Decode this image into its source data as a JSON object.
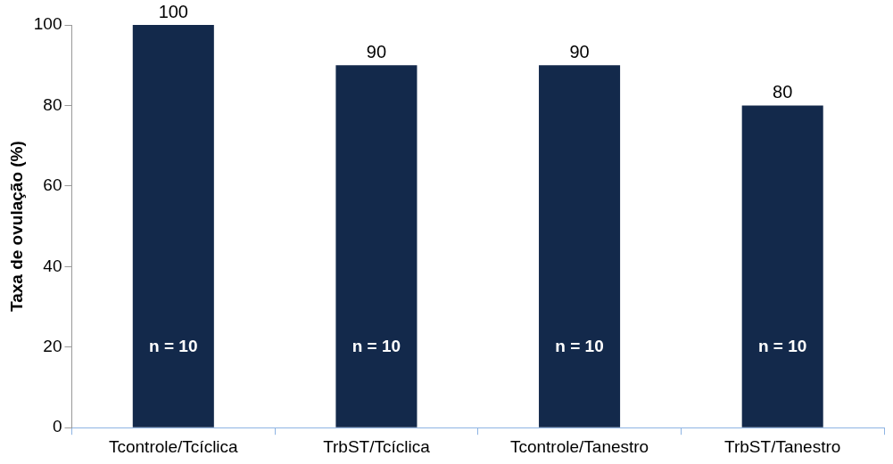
{
  "chart_data": {
    "type": "bar",
    "ylabel": "Taxa de ovulação (%)",
    "categories": [
      "Tcontrole/Tcíclica",
      "TrbST/Tcíclica",
      "Tcontrole/Tanestro",
      "TrbST/Tanestro"
    ],
    "values": [
      100,
      90,
      90,
      80
    ],
    "color": "#13294b",
    "ylim": [
      0,
      100
    ],
    "yticks": [
      0,
      20,
      40,
      60,
      80,
      100
    ],
    "grid": false,
    "legend": false,
    "data_labels": true,
    "annotations": [
      "n = 10",
      "n = 10",
      "n = 10",
      "n = 10"
    ]
  }
}
